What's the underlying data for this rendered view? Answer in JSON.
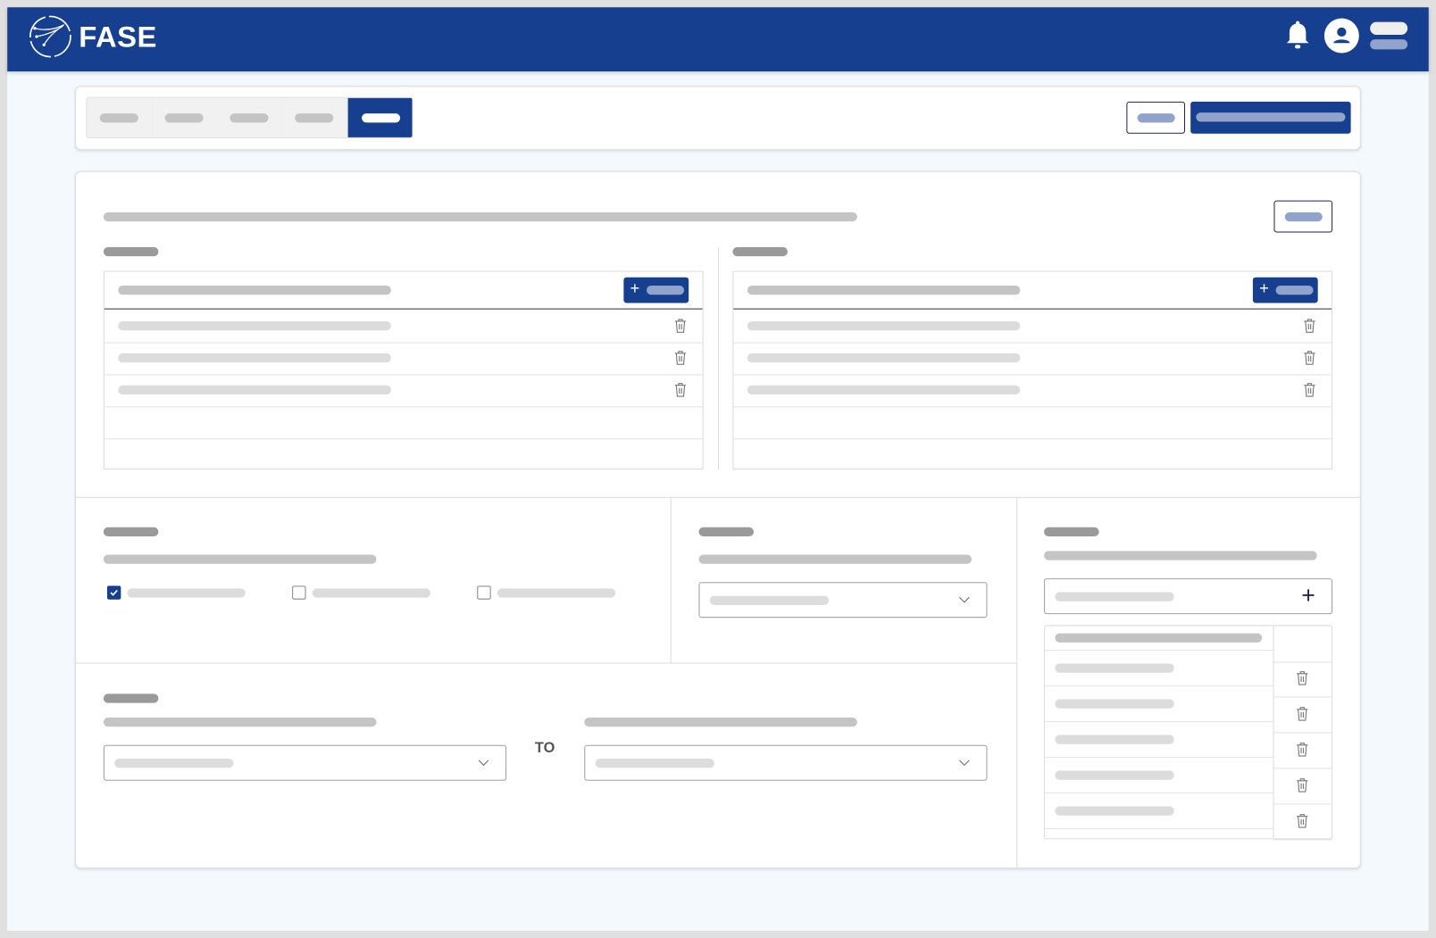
{
  "header": {
    "brand": "FASE",
    "icons": [
      "logo-icon",
      "bell-icon",
      "user-avatar-icon",
      "menu-icon"
    ]
  },
  "tabs": {
    "count": 5,
    "active_index": 4
  },
  "date_range": {
    "separator_label": "TO"
  },
  "checkboxes": [
    {
      "checked": true
    },
    {
      "checked": false
    },
    {
      "checked": false
    }
  ],
  "colors": {
    "brand": "#173f8f",
    "background": "#f3f9fd",
    "placeholder": "#c4c4c4"
  }
}
